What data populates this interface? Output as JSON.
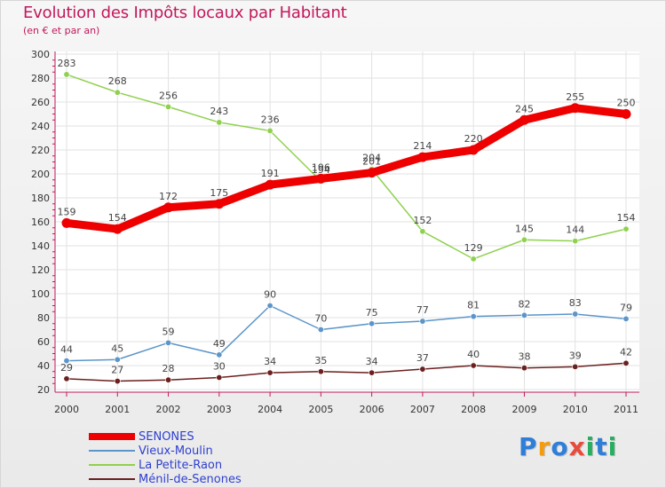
{
  "title": "Evolution des Impôts locaux par Habitant",
  "subtitle": "(en € et par an)",
  "logo": {
    "text": "Proxiti",
    "letters": [
      "P",
      "r",
      "o",
      "x",
      "i",
      "t",
      "i"
    ],
    "colors": [
      "#2f7ed8",
      "#f39c12",
      "#2f7ed8",
      "#e74c3c",
      "#27ae60",
      "#2f7ed8",
      "#27ae60"
    ]
  },
  "chart_data": {
    "type": "line",
    "x": [
      "2000",
      "2001",
      "2002",
      "2003",
      "2004",
      "2005",
      "2006",
      "2007",
      "2008",
      "2009",
      "2010",
      "2011"
    ],
    "ylim": [
      20,
      300
    ],
    "yticks": [
      "20",
      "40",
      "60",
      "80",
      "100",
      "120",
      "140",
      "160",
      "180",
      "200",
      "220",
      "240",
      "260",
      "280",
      "300"
    ],
    "grid": true,
    "legend_position": "bottom-left",
    "series": [
      {
        "name": "SENONES",
        "color": "#ee0000",
        "width": 9,
        "values": [
          159,
          154,
          172,
          175,
          191,
          196,
          201,
          214,
          220,
          245,
          255,
          250
        ],
        "labels": [
          "159",
          "154",
          "172",
          "175",
          "191",
          "196",
          "201",
          "214",
          "220",
          "245",
          "255",
          "250"
        ]
      },
      {
        "name": "Vieux-Moulin",
        "color": "#5b95c9",
        "width": 1.5,
        "values": [
          44,
          45,
          59,
          49,
          90,
          70,
          75,
          77,
          81,
          82,
          83,
          79
        ],
        "labels": [
          "44",
          "45",
          "59",
          "49",
          "90",
          "70",
          "75",
          "77",
          "81",
          "82",
          "83",
          "79"
        ]
      },
      {
        "name": "La Petite-Raon",
        "color": "#8fd14f",
        "width": 1.5,
        "values": [
          283,
          268,
          256,
          243,
          236,
          194,
          204,
          152,
          129,
          145,
          144,
          154
        ],
        "labels": [
          "283",
          "268",
          "256",
          "243",
          "236",
          "194",
          "204",
          "152",
          "129",
          "145",
          "144",
          "154"
        ]
      },
      {
        "name": "Ménil-de-Senones",
        "color": "#6b1f1f",
        "width": 1.5,
        "values": [
          29,
          27,
          28,
          30,
          34,
          35,
          34,
          37,
          40,
          38,
          39,
          42
        ],
        "labels": [
          "29",
          "27",
          "28",
          "30",
          "34",
          "35",
          "34",
          "37",
          "40",
          "38",
          "39",
          "42"
        ]
      }
    ]
  }
}
